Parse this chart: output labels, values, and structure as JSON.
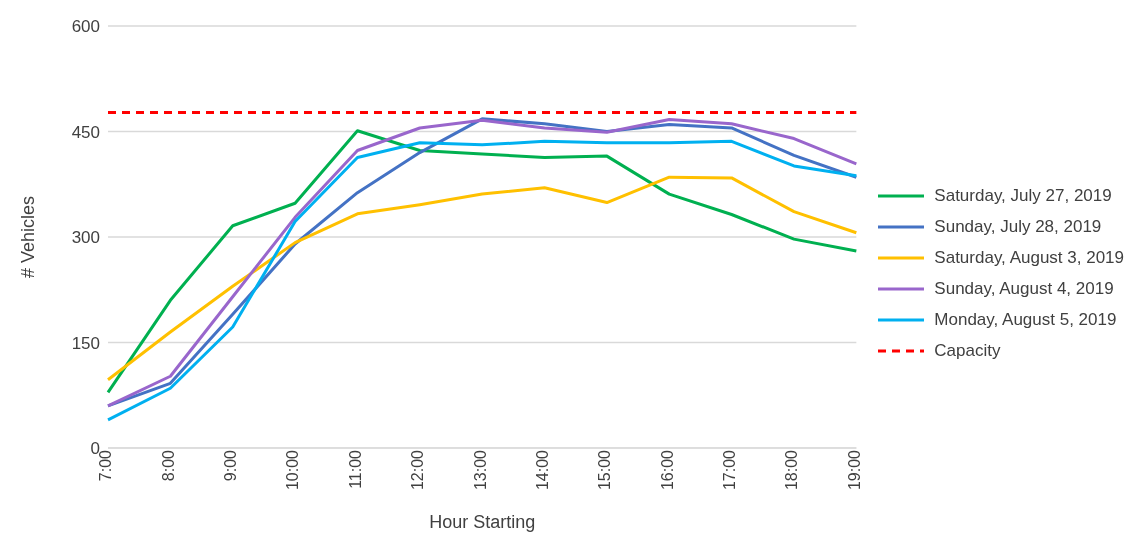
{
  "chart_data": {
    "type": "line",
    "xlabel": "Hour Starting",
    "ylabel": "# Vehicles",
    "categories": [
      "7:00",
      "8:00",
      "9:00",
      "10:00",
      "11:00",
      "12:00",
      "13:00",
      "14:00",
      "15:00",
      "16:00",
      "17:00",
      "18:00",
      "19:00"
    ],
    "series": [
      {
        "name": "Saturday, July 27, 2019",
        "color": "#00b050",
        "values": [
          79,
          210,
          316,
          348,
          451,
          423,
          418,
          413,
          415,
          361,
          332,
          297,
          280
        ]
      },
      {
        "name": "Sunday, July 28, 2019",
        "color": "#4472c4",
        "values": [
          60,
          92,
          190,
          290,
          363,
          420,
          468,
          461,
          450,
          460,
          455,
          416,
          385
        ]
      },
      {
        "name": "Saturday, August 3, 2019",
        "color": "#ffc000",
        "values": [
          97,
          165,
          230,
          292,
          333,
          346,
          361,
          370,
          349,
          385,
          384,
          336,
          306
        ]
      },
      {
        "name": "Sunday, August 4, 2019",
        "color": "#9966cc",
        "values": [
          60,
          102,
          215,
          328,
          423,
          455,
          466,
          455,
          449,
          467,
          461,
          440,
          404
        ]
      },
      {
        "name": "Monday, August 5, 2019",
        "color": "#00b0f0",
        "values": [
          40,
          85,
          172,
          322,
          413,
          434,
          431,
          436,
          434,
          434,
          436,
          401,
          387
        ]
      },
      {
        "name": "Capacity",
        "color": "#ff0000",
        "line_style": "dashed",
        "values": [
          477,
          477,
          477,
          477,
          477,
          477,
          477,
          477,
          477,
          477,
          477,
          477,
          477
        ]
      }
    ],
    "ylim": [
      0,
      600
    ],
    "yticks": [
      0,
      150,
      300,
      450,
      600
    ],
    "grid": "y",
    "legend": "right",
    "marker": "none",
    "line_style": "solid"
  }
}
